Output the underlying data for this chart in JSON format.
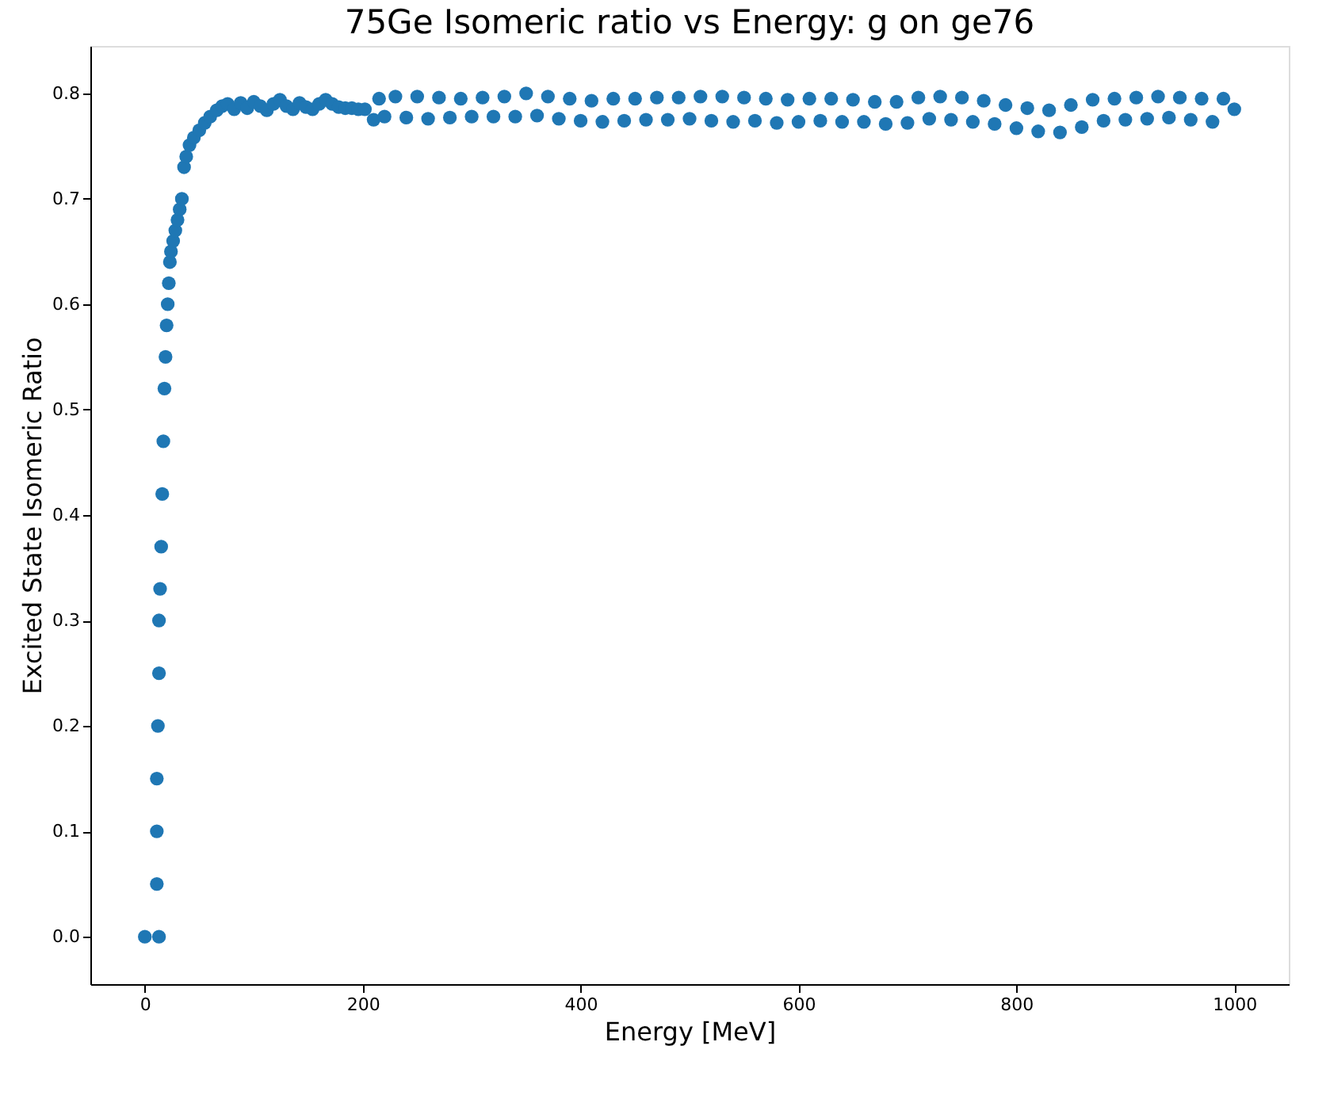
{
  "chart_data": {
    "type": "scatter",
    "title": "75Ge Isomeric ratio vs Energy: g on ge76",
    "xlabel": "Energy [MeV]",
    "ylabel": "Excited State Isomeric Ratio",
    "xlim": [
      -50,
      1050
    ],
    "ylim": [
      -0.045,
      0.845
    ],
    "xticks": [
      0,
      200,
      400,
      600,
      800,
      {
        "value": 1000,
        "label": "1000"
      }
    ],
    "yticks": [
      {
        "value": 0,
        "label": "0.0"
      },
      0.1,
      0.2,
      0.3,
      0.4,
      0.5,
      0.6,
      0.7,
      0.8
    ],
    "grid": false,
    "marker": "circle",
    "series": [
      {
        "color": "#1f77b4",
        "x": [
          0,
          13,
          11,
          11,
          11,
          12,
          13,
          13,
          14,
          15,
          16,
          17,
          18,
          19,
          20,
          21,
          22,
          23,
          24,
          26,
          28,
          30,
          32,
          34,
          36,
          38,
          41,
          45,
          50,
          55,
          60,
          66,
          71,
          76,
          82,
          88,
          94,
          100,
          106,
          112,
          118,
          124,
          130,
          136,
          142,
          148,
          154,
          160,
          166,
          172,
          178,
          184,
          190,
          196,
          202,
          210,
          215,
          220,
          230,
          240,
          250,
          260,
          270,
          280,
          290,
          300,
          310,
          320,
          330,
          340,
          350,
          360,
          370,
          380,
          390,
          400,
          410,
          420,
          430,
          440,
          450,
          460,
          470,
          480,
          490,
          500,
          510,
          520,
          530,
          540,
          550,
          560,
          570,
          580,
          590,
          600,
          610,
          620,
          630,
          640,
          650,
          660,
          670,
          680,
          690,
          700,
          710,
          720,
          730,
          740,
          750,
          760,
          770,
          780,
          790,
          800,
          810,
          820,
          830,
          840,
          850,
          860,
          870,
          880,
          890,
          900,
          910,
          920,
          930,
          940,
          950,
          960,
          970,
          980,
          990,
          1000
        ],
        "values": [
          0,
          0,
          0.05,
          0.1,
          0.15,
          0.2,
          0.25,
          0.3,
          0.33,
          0.37,
          0.42,
          0.47,
          0.52,
          0.55,
          0.58,
          0.6,
          0.62,
          0.64,
          0.65,
          0.66,
          0.67,
          0.68,
          0.69,
          0.7,
          0.73,
          0.74,
          0.751,
          0.758,
          0.765,
          0.772,
          0.778,
          0.784,
          0.788,
          0.79,
          0.785,
          0.791,
          0.786,
          0.792,
          0.788,
          0.784,
          0.79,
          0.794,
          0.788,
          0.785,
          0.791,
          0.787,
          0.785,
          0.79,
          0.794,
          0.79,
          0.787,
          0.786,
          0.786,
          0.785,
          0.785,
          0.775,
          0.795,
          0.778,
          0.797,
          0.777,
          0.797,
          0.776,
          0.796,
          0.777,
          0.795,
          0.778,
          0.796,
          0.778,
          0.797,
          0.778,
          0.8,
          0.779,
          0.797,
          0.776,
          0.795,
          0.774,
          0.793,
          0.773,
          0.795,
          0.774,
          0.795,
          0.775,
          0.796,
          0.775,
          0.796,
          0.776,
          0.797,
          0.774,
          0.797,
          0.773,
          0.796,
          0.774,
          0.795,
          0.772,
          0.794,
          0.773,
          0.795,
          0.774,
          0.795,
          0.773,
          0.794,
          0.773,
          0.792,
          0.771,
          0.792,
          0.772,
          0.796,
          0.776,
          0.797,
          0.775,
          0.796,
          0.773,
          0.793,
          0.771,
          0.789,
          0.767,
          0.786,
          0.764,
          0.784,
          0.763,
          0.789,
          0.768,
          0.794,
          0.774,
          0.795,
          0.775,
          0.796,
          0.776,
          0.797,
          0.777,
          0.796,
          0.775,
          0.795,
          0.773,
          0.795,
          0.785
        ]
      }
    ]
  }
}
